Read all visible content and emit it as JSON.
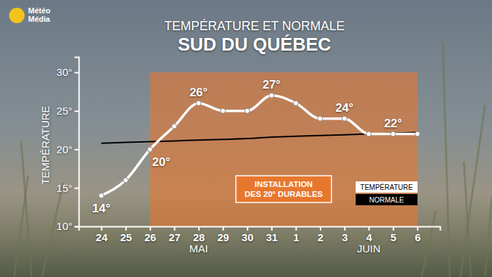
{
  "chart_data": {
    "type": "line",
    "title": "TEMPÉRATURE ET NORMALE",
    "subtitle": "SUD DU QUÉBEC",
    "y_label": "TEMPÉRATURE",
    "categories": [
      "24",
      "25",
      "26",
      "27",
      "28",
      "29",
      "30",
      "31",
      "1",
      "2",
      "3",
      "4",
      "5",
      "6"
    ],
    "x_groups": [
      {
        "label": "MAI",
        "at": "28"
      },
      {
        "label": "JUIN",
        "at": "4"
      }
    ],
    "series": [
      {
        "name": "TEMPÉRATURE",
        "color": "#ffffff",
        "marker": "circle",
        "line_style": "solid",
        "values": [
          14,
          16,
          20,
          23,
          26,
          25,
          25,
          27,
          26,
          24,
          24,
          22,
          22,
          22
        ],
        "value_labels": [
          "14°",
          null,
          "20°",
          null,
          "26°",
          null,
          null,
          "27°",
          null,
          null,
          "24°",
          null,
          "22°",
          null
        ]
      },
      {
        "name": "NORMALE",
        "color": "#000000",
        "marker": "none",
        "line_style": "solid",
        "values": [
          20.8,
          20.9,
          21.0,
          21.1,
          21.2,
          21.3,
          21.4,
          21.6,
          21.7,
          21.8,
          21.9,
          22.0,
          22.1,
          22.2
        ]
      }
    ],
    "ylim": [
      10,
      32
    ],
    "yticks": [
      {
        "value": 10,
        "label": "10°"
      },
      {
        "value": 15,
        "label": "15°"
      },
      {
        "value": 20,
        "label": "20°"
      },
      {
        "value": 25,
        "label": "25°"
      },
      {
        "value": 30,
        "label": "30°"
      }
    ],
    "grid": false,
    "legend": "lower right",
    "data_labels": true,
    "annotations": [
      {
        "text": [
          "INSTALLATION",
          "DES 20° DURABLES"
        ],
        "color": "#e8772e",
        "x_start": "26",
        "x_end": "6",
        "y_start": 10,
        "y_end": 30
      }
    ]
  },
  "logo": [
    "Météo",
    "Média"
  ]
}
